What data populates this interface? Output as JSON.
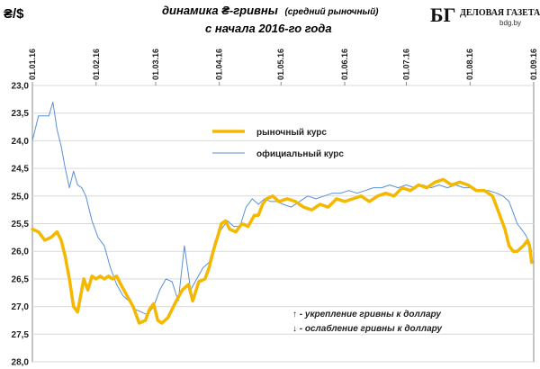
{
  "header": {
    "unit": "₴/$",
    "title_main": "динамика ₴-гривны",
    "title_paren": "(средний рыночный)",
    "subtitle": "с начала 2016-го года"
  },
  "logo": {
    "mark": "БГ",
    "name": "ДЕЛОВАЯ ГАЗЕТА",
    "url": "bdg.by"
  },
  "notes": [
    "↑ - укрепление гривны к доллару",
    "↓ - ослабление гривны к доллару"
  ],
  "colors": {
    "market": "#f5b800",
    "official": "#5b8fd6",
    "grid": "#d9d9d9",
    "axis": "#888888"
  },
  "chart_data": {
    "type": "line",
    "y_inverted": true,
    "ylim": [
      23.0,
      28.0
    ],
    "y_ticks": [
      "23,0",
      "23,5",
      "24,0",
      "24,5",
      "25,0",
      "25,5",
      "26,0",
      "26,5",
      "27,0",
      "27,5",
      "28,0"
    ],
    "x_ticks": [
      "01.01.16",
      "01.02.16",
      "01.03.16",
      "01.04.16",
      "01.05.16",
      "01.06.16",
      "01.07.16",
      "01.08.16",
      "01.09.16"
    ],
    "x_range_days": [
      0,
      244
    ],
    "grid": "horizontal",
    "legend_position": "top-left",
    "series": [
      {
        "name": "рыночный  курс",
        "color": "#f5b800",
        "x_days": [
          0,
          3,
          6,
          9,
          12,
          14,
          16,
          18,
          20,
          22,
          25,
          27,
          29,
          31,
          33,
          35,
          37,
          39,
          41,
          43,
          46,
          49,
          52,
          55,
          57,
          59,
          61,
          63,
          66,
          68,
          70,
          73,
          76,
          78,
          81,
          84,
          86,
          88,
          90,
          92,
          94,
          96,
          99,
          102,
          105,
          108,
          110,
          112,
          114,
          117,
          120,
          124,
          128,
          132,
          136,
          140,
          144,
          148,
          152,
          156,
          160,
          164,
          168,
          172,
          176,
          180,
          184,
          188,
          192,
          196,
          200,
          204,
          208,
          212,
          216,
          220,
          224,
          227,
          230,
          232,
          234,
          236,
          239,
          241,
          242,
          243
        ],
        "values": [
          25.6,
          25.65,
          25.8,
          25.75,
          25.65,
          25.8,
          26.1,
          26.5,
          27.0,
          27.1,
          26.5,
          26.7,
          26.45,
          26.5,
          26.45,
          26.5,
          26.45,
          26.5,
          26.45,
          26.6,
          26.8,
          27.0,
          27.3,
          27.25,
          27.05,
          26.95,
          27.25,
          27.3,
          27.2,
          27.05,
          26.9,
          26.7,
          26.6,
          26.9,
          26.55,
          26.5,
          26.3,
          26.0,
          25.75,
          25.5,
          25.45,
          25.6,
          25.65,
          25.5,
          25.55,
          25.35,
          25.35,
          25.15,
          25.05,
          25.0,
          25.1,
          25.05,
          25.1,
          25.2,
          25.25,
          25.15,
          25.2,
          25.05,
          25.1,
          25.05,
          25.0,
          25.1,
          25.0,
          24.95,
          25.0,
          24.85,
          24.9,
          24.8,
          24.85,
          24.75,
          24.7,
          24.8,
          24.75,
          24.8,
          24.9,
          24.9,
          25.0,
          25.3,
          25.6,
          25.9,
          26.0,
          26.0,
          25.9,
          25.8,
          25.9,
          26.2
        ]
      },
      {
        "name": "официальный  курс",
        "color": "#5b8fd6",
        "x_days": [
          0,
          3,
          6,
          8,
          10,
          12,
          14,
          16,
          18,
          20,
          22,
          24,
          26,
          29,
          32,
          35,
          38,
          41,
          44,
          47,
          50,
          53,
          56,
          59,
          62,
          65,
          68,
          71,
          74,
          77,
          80,
          83,
          86,
          89,
          92,
          95,
          98,
          101,
          104,
          107,
          110,
          113,
          116,
          119,
          122,
          126,
          130,
          134,
          138,
          142,
          146,
          150,
          154,
          158,
          162,
          166,
          170,
          174,
          178,
          182,
          186,
          190,
          194,
          198,
          202,
          206,
          210,
          214,
          218,
          222,
          226,
          229,
          232,
          234,
          236,
          238,
          240,
          242,
          243
        ],
        "values": [
          24.0,
          23.55,
          23.55,
          23.55,
          23.3,
          23.8,
          24.1,
          24.5,
          24.85,
          24.55,
          24.8,
          24.85,
          25.0,
          25.45,
          25.75,
          25.9,
          26.3,
          26.6,
          26.8,
          26.9,
          27.05,
          27.1,
          27.15,
          27.0,
          26.7,
          26.5,
          26.55,
          26.9,
          25.9,
          26.7,
          26.5,
          26.3,
          26.2,
          25.8,
          25.6,
          25.45,
          25.55,
          25.55,
          25.2,
          25.05,
          25.15,
          25.05,
          25.1,
          25.1,
          25.15,
          25.2,
          25.1,
          25.0,
          25.05,
          25.0,
          24.95,
          24.95,
          24.9,
          24.95,
          24.9,
          24.85,
          24.85,
          24.8,
          24.85,
          24.8,
          24.85,
          24.8,
          24.85,
          24.8,
          24.85,
          24.8,
          24.85,
          24.85,
          24.9,
          24.9,
          24.95,
          25.0,
          25.1,
          25.3,
          25.5,
          25.6,
          25.7,
          25.85,
          26.0
        ]
      }
    ]
  }
}
